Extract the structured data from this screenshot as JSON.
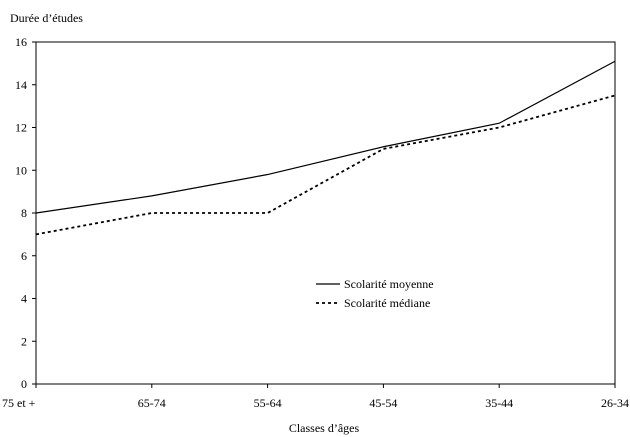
{
  "chart_data": {
    "type": "line",
    "title": "",
    "ylabel": "Durée d’études",
    "xlabel": "Classes d’âges",
    "categories": [
      "75 et +",
      "65-74",
      "55-64",
      "45-54",
      "35-44",
      "26-34"
    ],
    "ylim": [
      0,
      16
    ],
    "yticks": [
      0,
      2,
      4,
      6,
      8,
      10,
      12,
      14,
      16
    ],
    "grid": false,
    "legend_position": "center-right",
    "series": [
      {
        "name": "Scolarité moyenne",
        "values": [
          8.0,
          8.8,
          9.8,
          11.1,
          12.2,
          15.1
        ],
        "line_style": "solid",
        "color": "#000000"
      },
      {
        "name": "Scolarité médiane",
        "values": [
          7.0,
          8.0,
          8.0,
          11.0,
          12.0,
          13.5
        ],
        "line_style": "dotted",
        "color": "#000000"
      }
    ]
  }
}
